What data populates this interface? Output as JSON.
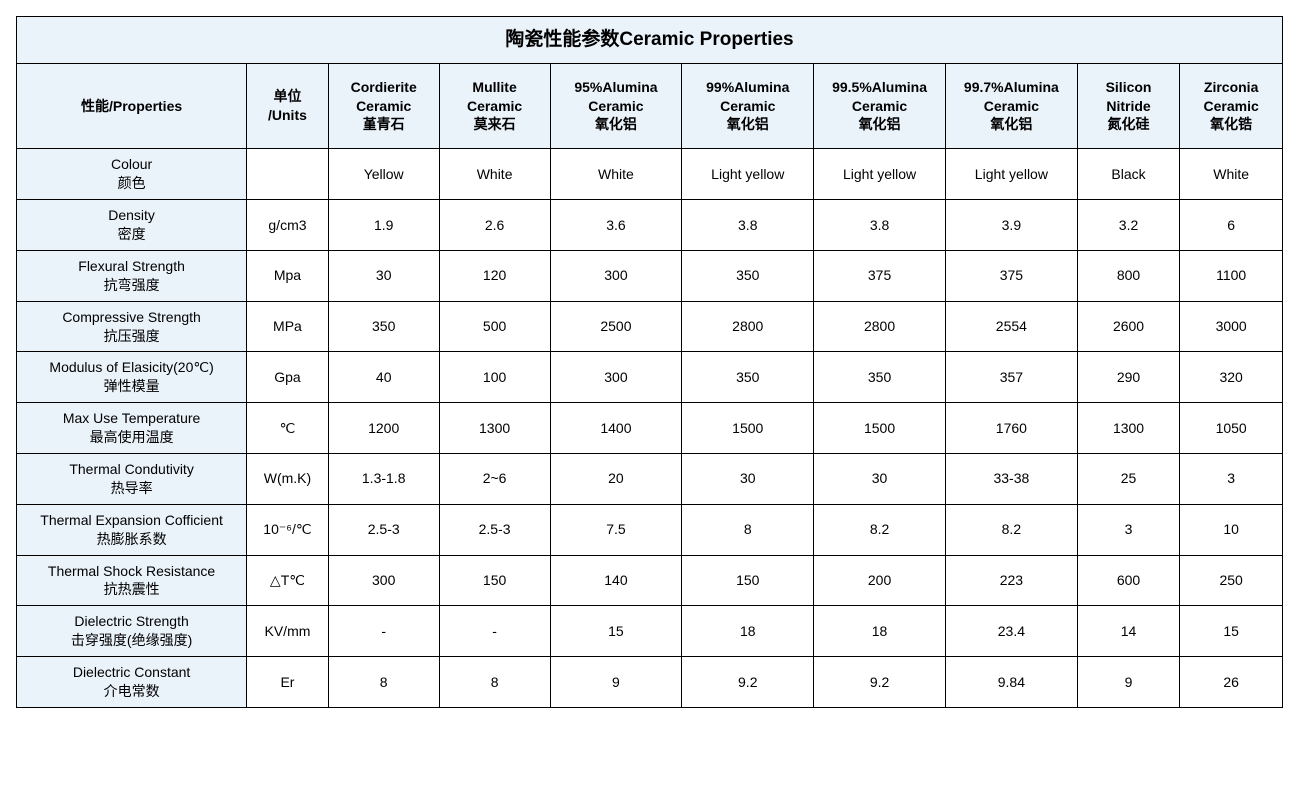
{
  "table": {
    "title": "陶瓷性能参数Ceramic Properties",
    "header": {
      "prop": "性能/Properties",
      "unit_l1": "单位",
      "unit_l2": "/Units",
      "materials": [
        {
          "l1": "Cordierite",
          "l2": "Ceramic",
          "l3": "堇青石"
        },
        {
          "l1": "Mullite",
          "l2": "Ceramic",
          "l3": "莫来石"
        },
        {
          "l1": "95%Alumina",
          "l2": "Ceramic",
          "l3": "氧化铝"
        },
        {
          "l1": "99%Alumina",
          "l2": "Ceramic",
          "l3": "氧化铝"
        },
        {
          "l1": "99.5%Alumina",
          "l2": "Ceramic",
          "l3": "氧化铝"
        },
        {
          "l1": "99.7%Alumina",
          "l2": "Ceramic",
          "l3": "氧化铝"
        },
        {
          "l1": "Silicon",
          "l2": "Nitride",
          "l3": "氮化硅"
        },
        {
          "l1": "Zirconia",
          "l2": "Ceramic",
          "l3": "氧化锆"
        }
      ]
    },
    "rows": [
      {
        "name_en": "Colour",
        "name_cn": "颜色",
        "unit": "",
        "v": [
          "Yellow",
          "White",
          "White",
          "Light yellow",
          "Light yellow",
          "Light yellow",
          "Black",
          "White"
        ]
      },
      {
        "name_en": "Density",
        "name_cn": "密度",
        "unit": "g/cm3",
        "v": [
          "1.9",
          "2.6",
          "3.6",
          "3.8",
          "3.8",
          "3.9",
          "3.2",
          "6"
        ]
      },
      {
        "name_en": "Flexural Strength",
        "name_cn": "抗弯强度",
        "unit": "Mpa",
        "v": [
          "30",
          "120",
          "300",
          "350",
          "375",
          "375",
          "800",
          "1100"
        ]
      },
      {
        "name_en": "Compressive Strength",
        "name_cn": "抗压强度",
        "unit": "MPa",
        "v": [
          "350",
          "500",
          "2500",
          "2800",
          "2800",
          "2554",
          "2600",
          "3000"
        ]
      },
      {
        "name_en": "Modulus of Elasicity(20℃)",
        "name_cn": "弹性模量",
        "unit": "Gpa",
        "v": [
          "40",
          "100",
          "300",
          "350",
          "350",
          "357",
          "290",
          "320"
        ]
      },
      {
        "name_en": "Max Use Temperature",
        "name_cn": "最高使用温度",
        "unit": "℃",
        "v": [
          "1200",
          "1300",
          "1400",
          "1500",
          "1500",
          "1760",
          "1300",
          "1050"
        ]
      },
      {
        "name_en": "Thermal Condutivity",
        "name_cn": "热导率",
        "unit": "W(m.K)",
        "v": [
          "1.3-1.8",
          "2~6",
          "20",
          "30",
          "30",
          "33-38",
          "25",
          "3"
        ]
      },
      {
        "name_en": "Thermal Expansion Cofficient",
        "name_cn": "热膨胀系数",
        "unit": "10⁻⁶/℃",
        "v": [
          "2.5-3",
          "2.5-3",
          "7.5",
          "8",
          "8.2",
          "8.2",
          "3",
          "10"
        ]
      },
      {
        "name_en": "Thermal Shock Resistance",
        "name_cn": "抗热震性",
        "unit": "△T℃",
        "v": [
          "300",
          "150",
          "140",
          "150",
          "200",
          "223",
          "600",
          "250"
        ]
      },
      {
        "name_en": "Dielectric Strength",
        "name_cn": "击穿强度(绝缘强度)",
        "unit": "KV/mm",
        "v": [
          "-",
          "-",
          "15",
          "18",
          "18",
          "23.4",
          "14",
          "15"
        ]
      },
      {
        "name_en": "Dielectric Constant",
        "name_cn": "介电常数",
        "unit": "Er",
        "v": [
          "8",
          "8",
          "9",
          "9.2",
          "9.2",
          "9.84",
          "9",
          "26"
        ]
      }
    ],
    "colors": {
      "header_bg": "#eaf2fa",
      "border": "#000000",
      "text": "#000000",
      "page_bg": "#ffffff"
    }
  }
}
